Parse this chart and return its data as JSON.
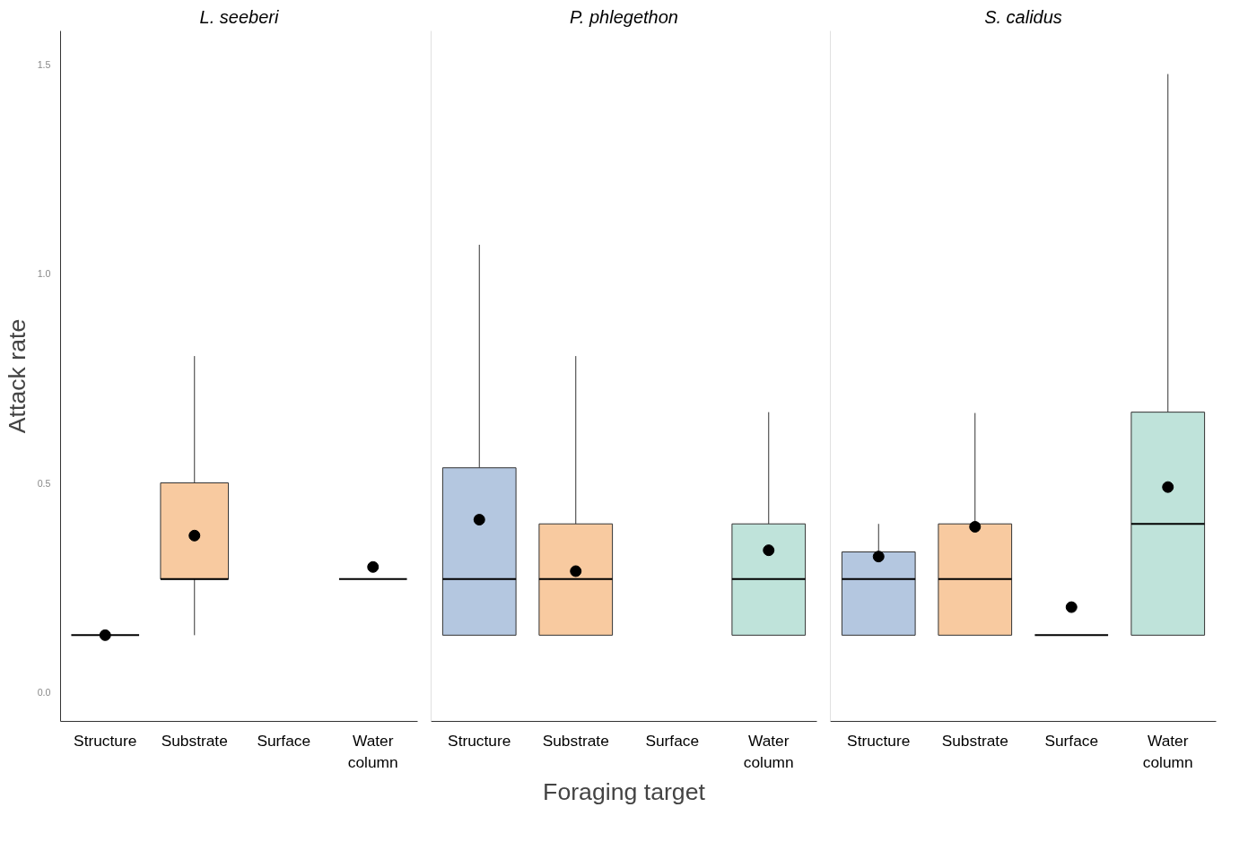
{
  "chart_data": [
    {
      "type": "box",
      "title": "L. seeberi",
      "ylabel": "Attack rate",
      "categories": [
        "Structure",
        "Substrate",
        "Surface",
        "Water column"
      ],
      "colors": [
        null,
        "#f8caa0",
        null,
        null
      ],
      "ylim": [
        -0.07,
        1.58
      ],
      "yticks": [
        {
          "value": 0,
          "label": "0.0"
        },
        0.5,
        {
          "value": 1,
          "label": "1.0"
        },
        1.5
      ],
      "tick_labels": "xy",
      "grid": false,
      "boxes": [
        {
          "low": 0.136,
          "q1": 0.136,
          "median": 0.136,
          "q3": 0.136,
          "high": 0.136,
          "mean": 0.136
        },
        {
          "low": 0.136,
          "q1": 0.27,
          "median": 0.27,
          "q3": 0.5,
          "high": 0.803,
          "mean": 0.374
        },
        null,
        {
          "low": 0.27,
          "q1": 0.27,
          "median": 0.27,
          "q3": 0.27,
          "high": 0.27,
          "mean": 0.299
        }
      ]
    },
    {
      "type": "box",
      "title": "P. phlegethon",
      "xlabel": "Foraging target",
      "categories": [
        "Structure",
        "Substrate",
        "Surface",
        "Water column"
      ],
      "colors": [
        "#b4c7e0",
        "#f8caa0",
        null,
        "#bfe3da"
      ],
      "ylim": [
        -0.07,
        1.58
      ],
      "tick_labels": "x",
      "grid": false,
      "boxes": [
        {
          "low": 0.136,
          "q1": 0.136,
          "median": 0.27,
          "q3": 0.536,
          "high": 1.069,
          "mean": 0.412
        },
        {
          "low": 0.136,
          "q1": 0.136,
          "median": 0.27,
          "q3": 0.402,
          "high": 0.803,
          "mean": 0.289
        },
        null,
        {
          "low": 0.136,
          "q1": 0.136,
          "median": 0.27,
          "q3": 0.402,
          "high": 0.669,
          "mean": 0.339
        }
      ]
    },
    {
      "type": "box",
      "title": "S. calidus",
      "categories": [
        "Structure",
        "Substrate",
        "Surface",
        "Water column"
      ],
      "colors": [
        "#b4c7e0",
        "#f8caa0",
        null,
        "#bfe3da"
      ],
      "ylim": [
        -0.07,
        1.58
      ],
      "tick_labels": "x",
      "grid": false,
      "boxes": [
        {
          "low": 0.136,
          "q1": 0.136,
          "median": 0.27,
          "q3": 0.335,
          "high": 0.402,
          "mean": 0.324
        },
        {
          "low": 0.136,
          "q1": 0.136,
          "median": 0.27,
          "q3": 0.402,
          "high": 0.667,
          "mean": 0.395
        },
        {
          "low": 0.136,
          "q1": 0.136,
          "median": 0.136,
          "q3": 0.136,
          "high": 0.136,
          "mean": 0.203
        },
        {
          "low": 0.136,
          "q1": 0.136,
          "median": 0.402,
          "q3": 0.669,
          "high": 1.477,
          "mean": 0.49
        }
      ]
    }
  ]
}
